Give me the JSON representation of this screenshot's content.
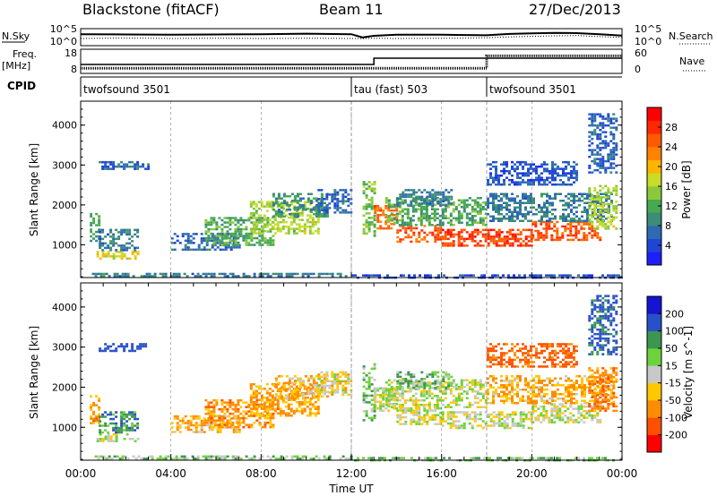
{
  "header": {
    "station": "Blackstone (fitACF)",
    "beam": "Beam 11",
    "date": "27/Dec/2013"
  },
  "noise_panel": {
    "left_label": "N.Sky",
    "left_ticks": [
      "10^5",
      "10^0"
    ],
    "right_label": "N.Search",
    "right_ticks": [
      "10^5",
      "10^0"
    ]
  },
  "freq_panel": {
    "left_label_line1": "Freq.",
    "left_label_line2": "[MHz]",
    "left_ticks": [
      "18",
      "8"
    ],
    "right_label": "Nave",
    "right_ticks": [
      "60",
      "0"
    ]
  },
  "cpid_panel": {
    "label": "CPID",
    "modes": [
      {
        "name": "twofsound 3501",
        "start_hour": 0
      },
      {
        "name": "tau (fast) 503",
        "start_hour": 12
      },
      {
        "name": "twofsound 3501",
        "start_hour": 18
      }
    ]
  },
  "colors": {
    "power": [
      "#1e1eff",
      "#1e46d2",
      "#2d6ab4",
      "#3c8c78",
      "#46aa50",
      "#8cc83c",
      "#c8dc28",
      "#ffb400",
      "#ff8200",
      "#ff5a00",
      "#ff2800",
      "#ff0000"
    ],
    "velocity": [
      "#ff0000",
      "#ff5000",
      "#ff8c00",
      "#ffc800",
      "#c8c8c8",
      "#6ed23c",
      "#3c9650",
      "#2850c8",
      "#1414d2"
    ],
    "grid": "#888888"
  },
  "chart_data": [
    {
      "type": "line",
      "title": "N.Sky / N.Search",
      "x": [
        0,
        2,
        4,
        6,
        8,
        10,
        12,
        12.5,
        13,
        14,
        16,
        18,
        19,
        20,
        21,
        22,
        23,
        24
      ],
      "series": [
        {
          "name": "N.Sky",
          "values": [
            3.6,
            3.5,
            3.4,
            3.5,
            3.6,
            3.8,
            3.6,
            2.4,
            3.0,
            3.4,
            3.4,
            3.2,
            3.7,
            3.9,
            4.1,
            4.0,
            3.6,
            3.1
          ]
        },
        {
          "name": "N.Search",
          "values": [
            2.0,
            2.2,
            2.0,
            2.1,
            2.0,
            2.1,
            2.0,
            2.0,
            2.1,
            2.0,
            2.1,
            2.3,
            2.6,
            2.8,
            3.0,
            3.1,
            2.7,
            2.4
          ]
        }
      ],
      "xlim": [
        0,
        24
      ],
      "ylim": [
        0,
        5
      ],
      "ylabel": "N.Sky",
      "y2label": "N.Search",
      "log_scale": true
    },
    {
      "type": "line",
      "title": "Freq. / Nave",
      "x": [
        0,
        12,
        13,
        13,
        18,
        18,
        24
      ],
      "series": [
        {
          "name": "Freq.",
          "values": [
            11.5,
            11.5,
            11.5,
            14.5,
            14.5,
            14.5,
            14.5
          ]
        },
        {
          "name": "Nave",
          "values": [
            10,
            10,
            10,
            10,
            10,
            46,
            46
          ]
        }
      ],
      "xlim": [
        0,
        24
      ],
      "ylim": [
        8,
        18
      ],
      "ylabel": "Freq. [MHz]",
      "y2label": "Nave",
      "y2lim": [
        0,
        60
      ]
    },
    {
      "type": "heatmap",
      "title": "Power",
      "xlabel": "",
      "ylabel": "Slant Range [km]",
      "xlim": [
        0,
        24
      ],
      "ylim": [
        180,
        4600
      ],
      "yticks": [
        1000,
        2000,
        3000,
        4000
      ],
      "colorbar_label": "Power [dB]",
      "colorbar_ticks": [
        4,
        8,
        12,
        16,
        20,
        24,
        28
      ],
      "colorbar_range": [
        0,
        32
      ],
      "regions": [
        {
          "t0": 0.4,
          "t1": 0.8,
          "r0": 1100,
          "r1": 1800,
          "value": 12
        },
        {
          "t0": 0.7,
          "t1": 2.6,
          "r0": 650,
          "r1": 850,
          "value": 18
        },
        {
          "t0": 0.8,
          "t1": 2.5,
          "r0": 850,
          "r1": 1400,
          "value": 8
        },
        {
          "t0": 0.8,
          "t1": 3.0,
          "r0": 2900,
          "r1": 3100,
          "value": 6
        },
        {
          "t0": 4.0,
          "t1": 7.0,
          "r0": 900,
          "r1": 1300,
          "value": 6
        },
        {
          "t0": 5.5,
          "t1": 8.5,
          "r0": 1000,
          "r1": 1700,
          "value": 12
        },
        {
          "t0": 7.5,
          "t1": 10.5,
          "r0": 1300,
          "r1": 2100,
          "value": 16
        },
        {
          "t0": 8.5,
          "t1": 11.0,
          "r0": 1700,
          "r1": 2300,
          "value": 10
        },
        {
          "t0": 10.5,
          "t1": 12.0,
          "r0": 1800,
          "r1": 2400,
          "value": 6
        },
        {
          "t0": 12.5,
          "t1": 13.0,
          "r0": 1200,
          "r1": 2600,
          "value": 14
        },
        {
          "t0": 13.0,
          "t1": 14.0,
          "r0": 1400,
          "r1": 2000,
          "value": 24
        },
        {
          "t0": 14.0,
          "t1": 16.0,
          "r0": 1100,
          "r1": 1500,
          "value": 26
        },
        {
          "t0": 16.0,
          "t1": 20.0,
          "r0": 1000,
          "r1": 1400,
          "value": 27
        },
        {
          "t0": 20.0,
          "t1": 23.0,
          "r0": 1100,
          "r1": 1600,
          "value": 26
        },
        {
          "t0": 13.5,
          "t1": 18.0,
          "r0": 1500,
          "r1": 2200,
          "value": 12
        },
        {
          "t0": 14.0,
          "t1": 16.5,
          "r0": 2000,
          "r1": 2400,
          "value": 8
        },
        {
          "t0": 18.0,
          "t1": 23.5,
          "r0": 1600,
          "r1": 2300,
          "value": 8
        },
        {
          "t0": 22.5,
          "t1": 23.8,
          "r0": 1400,
          "r1": 2500,
          "value": 16
        },
        {
          "t0": 18.0,
          "t1": 22.0,
          "r0": 2500,
          "r1": 3100,
          "value": 5
        },
        {
          "t0": 22.5,
          "t1": 23.8,
          "r0": 2800,
          "r1": 4300,
          "value": 6
        },
        {
          "t0": 0.5,
          "t1": 12.0,
          "r0": 190,
          "r1": 300,
          "value": 8
        },
        {
          "t0": 12.0,
          "t1": 24.0,
          "r0": 190,
          "r1": 260,
          "value": 4
        }
      ]
    },
    {
      "type": "heatmap",
      "title": "Velocity",
      "xlabel": "Time UT",
      "ylabel": "Slant Range [km]",
      "xlim": [
        0,
        24
      ],
      "ylim": [
        180,
        4600
      ],
      "yticks": [
        1000,
        2000,
        3000,
        4000
      ],
      "xticks": [
        "00:00",
        "04:00",
        "08:00",
        "12:00",
        "16:00",
        "20:00",
        "00:00"
      ],
      "colorbar_label": "Velocity [m s^-1]",
      "colorbar_ticks": [
        -200,
        -100,
        -50,
        -15,
        15,
        50,
        100,
        200
      ],
      "colorbar_range": [
        -250,
        250
      ],
      "regions": [
        {
          "t0": 0.4,
          "t1": 0.8,
          "r0": 1100,
          "r1": 1800,
          "value": -60
        },
        {
          "t0": 0.7,
          "t1": 2.6,
          "r0": 650,
          "r1": 850,
          "value": 0
        },
        {
          "t0": 0.8,
          "t1": 2.5,
          "r0": 850,
          "r1": 1400,
          "value": 80
        },
        {
          "t0": 0.8,
          "t1": 3.0,
          "r0": 2900,
          "r1": 3100,
          "value": 150
        },
        {
          "t0": 4.0,
          "t1": 7.0,
          "r0": 900,
          "r1": 1300,
          "value": -40
        },
        {
          "t0": 5.5,
          "t1": 8.5,
          "r0": 1000,
          "r1": 1700,
          "value": -70
        },
        {
          "t0": 7.5,
          "t1": 10.5,
          "r0": 1300,
          "r1": 2100,
          "value": -60
        },
        {
          "t0": 8.5,
          "t1": 11.0,
          "r0": 1700,
          "r1": 2300,
          "value": -40
        },
        {
          "t0": 10.5,
          "t1": 12.0,
          "r0": 1800,
          "r1": 2400,
          "value": -20
        },
        {
          "t0": 12.5,
          "t1": 13.0,
          "r0": 1200,
          "r1": 2600,
          "value": 40
        },
        {
          "t0": 13.0,
          "t1": 14.0,
          "r0": 1400,
          "r1": 2000,
          "value": 0
        },
        {
          "t0": 14.0,
          "t1": 16.0,
          "r0": 1100,
          "r1": 1500,
          "value": 0
        },
        {
          "t0": 16.0,
          "t1": 20.0,
          "r0": 1000,
          "r1": 1400,
          "value": 0
        },
        {
          "t0": 20.0,
          "t1": 23.0,
          "r0": 1100,
          "r1": 1600,
          "value": 0
        },
        {
          "t0": 13.5,
          "t1": 18.0,
          "r0": 1500,
          "r1": 2200,
          "value": 0
        },
        {
          "t0": 14.0,
          "t1": 16.5,
          "r0": 2000,
          "r1": 2400,
          "value": 40
        },
        {
          "t0": 18.0,
          "t1": 23.5,
          "r0": 1600,
          "r1": 2300,
          "value": -50
        },
        {
          "t0": 22.5,
          "t1": 23.8,
          "r0": 1400,
          "r1": 2500,
          "value": -80
        },
        {
          "t0": 18.0,
          "t1": 22.0,
          "r0": 2500,
          "r1": 3100,
          "value": -120
        },
        {
          "t0": 22.5,
          "t1": 23.8,
          "r0": 2800,
          "r1": 4300,
          "value": 120
        },
        {
          "t0": 0.5,
          "t1": 12.0,
          "r0": 190,
          "r1": 300,
          "value": 30
        },
        {
          "t0": 12.0,
          "t1": 24.0,
          "r0": 190,
          "r1": 260,
          "value": 40
        }
      ]
    }
  ]
}
